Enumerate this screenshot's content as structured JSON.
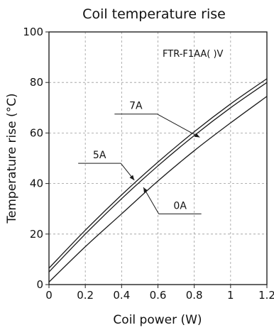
{
  "chart_data": {
    "type": "line",
    "title": "Coil temperature rise",
    "xlabel": "Coil power (W)",
    "ylabel": "Temperature rise (°C)",
    "xlim": [
      0,
      1.2
    ],
    "ylim": [
      0,
      100
    ],
    "x_ticks": [
      "0",
      "0.2",
      "0.4",
      "0.6",
      "0.8",
      "1",
      "1.2"
    ],
    "y_ticks": [
      "0",
      "20",
      "40",
      "60",
      "80",
      "100"
    ],
    "grid": "dashed",
    "model_label": "FTR-F1AA( )V",
    "x": [
      0,
      0.2,
      0.4,
      0.6,
      0.8,
      1.0,
      1.2
    ],
    "series": [
      {
        "name": "7A",
        "values": [
          6.5,
          21.5,
          35.5,
          48.5,
          60.5,
          71.5,
          81.5
        ]
      },
      {
        "name": "5A",
        "values": [
          5,
          20,
          34,
          47,
          59,
          70,
          80
        ]
      },
      {
        "name": "0A",
        "values": [
          1,
          15,
          28,
          41,
          53,
          64,
          74.5
        ]
      }
    ],
    "annotations": [
      {
        "text": "7A",
        "series": "7A",
        "label_x": 0.4,
        "label_y": 67.5,
        "point_x": 0.83,
        "point_y": 58.3
      },
      {
        "text": "5A",
        "series": "5A",
        "label_x": 0.2,
        "label_y": 48,
        "point_x": 0.47,
        "point_y": 41.3
      },
      {
        "text": "0A",
        "series": "0A",
        "label_x": 0.8,
        "label_y": 28,
        "point_x": 0.52,
        "point_y": 38.5
      }
    ]
  }
}
